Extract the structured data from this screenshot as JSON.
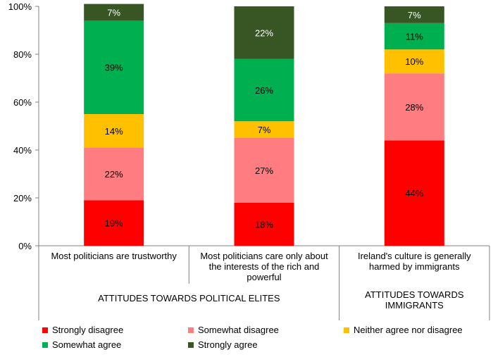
{
  "chart_data": {
    "type": "bar",
    "stacked": true,
    "percent": true,
    "ylim": [
      0,
      100
    ],
    "yticks": [
      "0%",
      "20%",
      "40%",
      "60%",
      "80%",
      "100%"
    ],
    "ytick_values": [
      0,
      20,
      40,
      60,
      80,
      100
    ],
    "categories": [
      "Most politicians are trustworthy",
      "Most politicians care only about the interests of the rich and powerful",
      "Ireland's culture is generally harmed by immigrants"
    ],
    "category_lines": [
      [
        "Most politicians are trustworthy"
      ],
      [
        "Most politicians care only about",
        "the interests of the rich and",
        "powerful"
      ],
      [
        "Ireland's culture is generally",
        "harmed by immigrants"
      ]
    ],
    "groups": [
      {
        "label_lines": [
          "ATTITUDES TOWARDS POLITICAL ELITES"
        ],
        "span": [
          0,
          1
        ]
      },
      {
        "label_lines": [
          "ATTITUDES TOWARDS",
          "IMMIGRANTS"
        ],
        "span": [
          2,
          2
        ]
      }
    ],
    "series": [
      {
        "name": "Strongly disagree",
        "color": "#FF0000",
        "values": [
          19,
          18,
          44
        ],
        "labels": [
          "19%",
          "18%",
          "44%"
        ]
      },
      {
        "name": "Somewhat disagree",
        "color": "#FF7C80",
        "values": [
          22,
          27,
          28
        ],
        "labels": [
          "22%",
          "27%",
          "28%"
        ]
      },
      {
        "name": "Neither agree nor disagree",
        "color": "#FFC000",
        "values": [
          14,
          7,
          10
        ],
        "labels": [
          "14%",
          "7%",
          "10%"
        ]
      },
      {
        "name": "Somewhat agree",
        "color": "#00B050",
        "values": [
          39,
          26,
          11
        ],
        "labels": [
          "39%",
          "26%",
          "11%"
        ]
      },
      {
        "name": "Strongly agree",
        "color": "#375623",
        "values": [
          7,
          22,
          7
        ],
        "labels": [
          "7%",
          "22%",
          "7%"
        ]
      }
    ],
    "legend_position": "bottom"
  }
}
